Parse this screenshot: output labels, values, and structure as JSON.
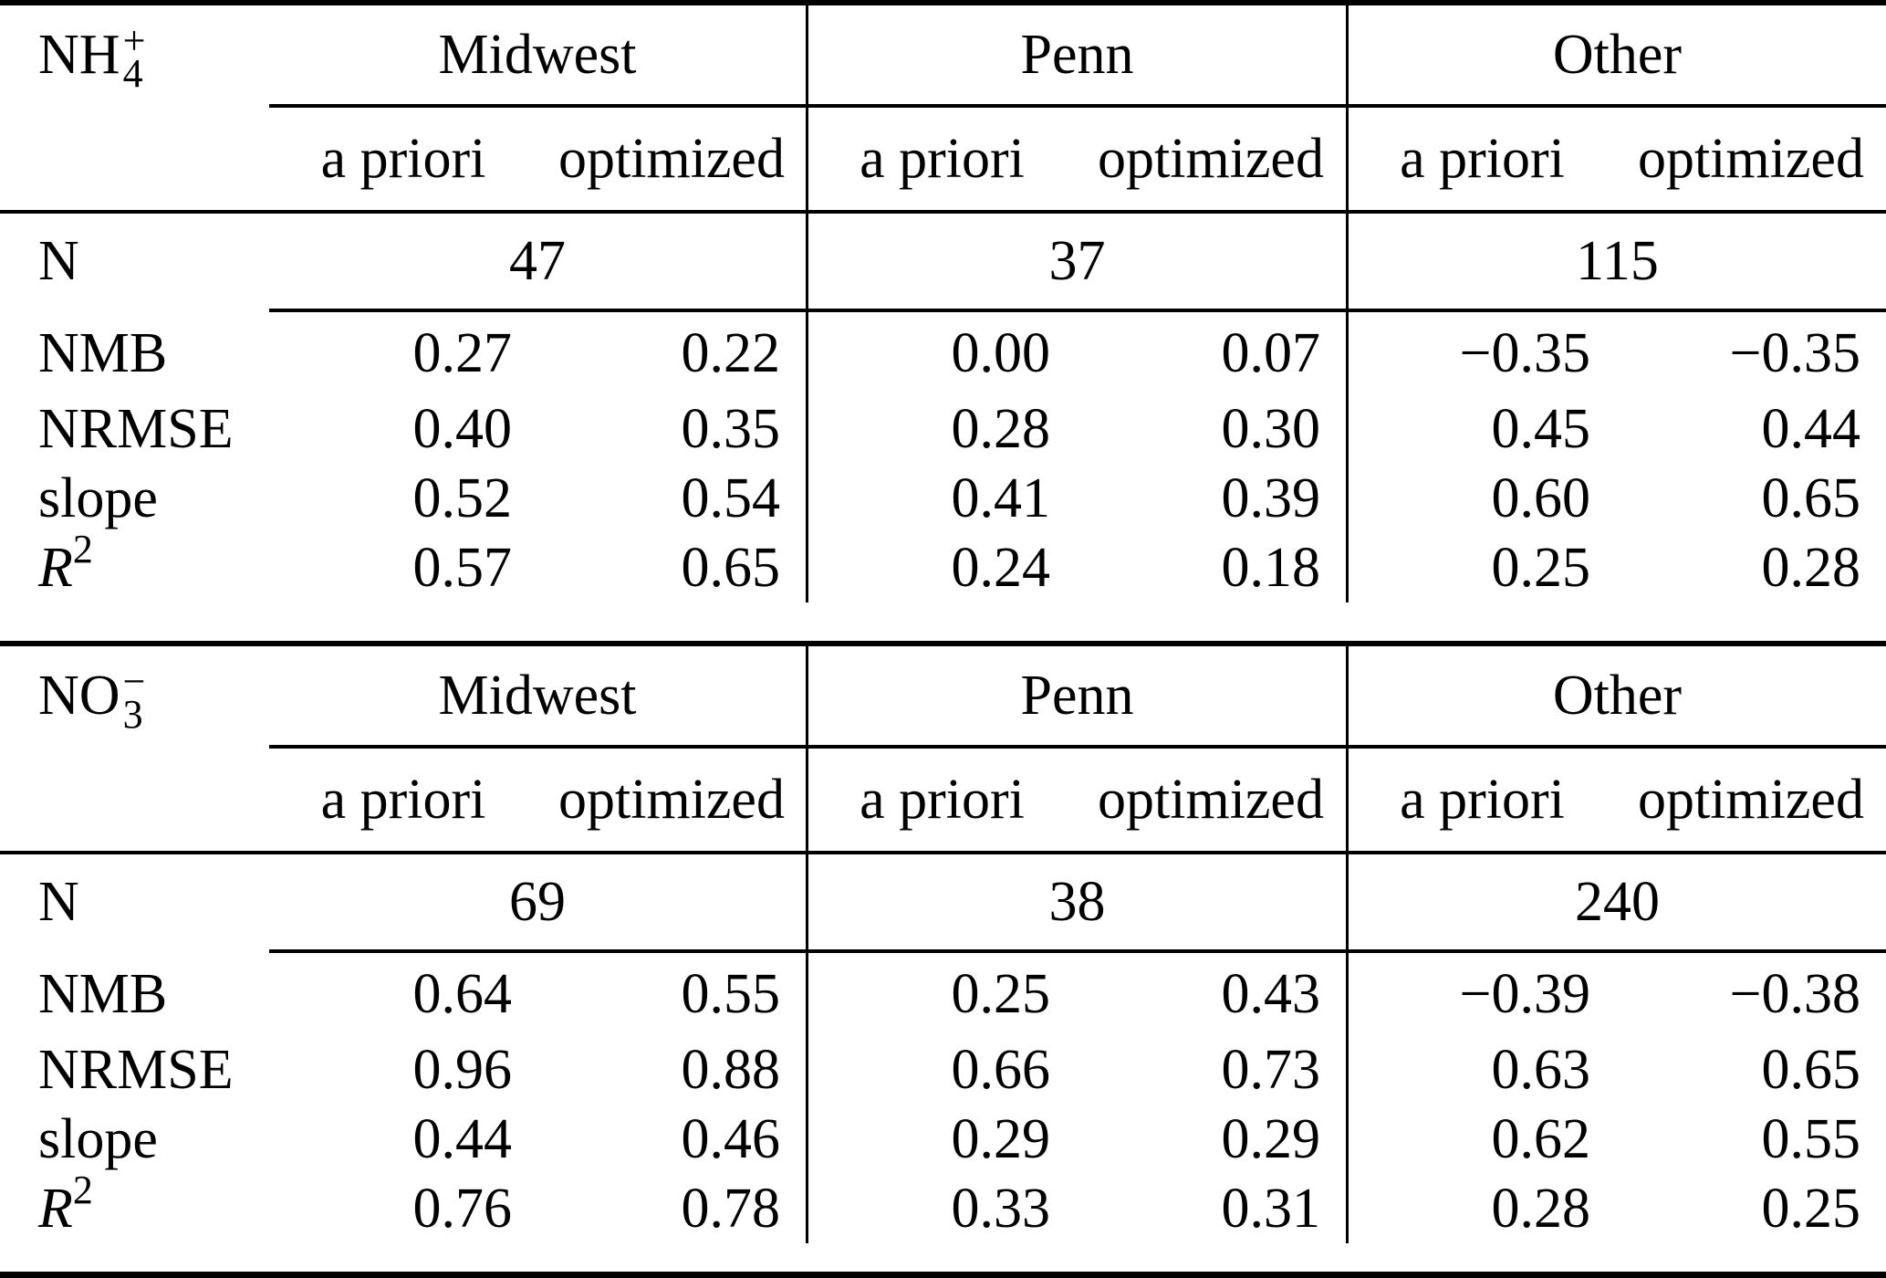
{
  "colors": {
    "text": "#000000",
    "background": "#ffffff",
    "rule": "#000000"
  },
  "tables": [
    {
      "species": {
        "base": "NH",
        "sub": "4",
        "sup": "+"
      },
      "n_label": "N",
      "regions": [
        {
          "name": "Midwest",
          "n": "47",
          "headers": [
            "a priori",
            "optimized"
          ]
        },
        {
          "name": "Penn",
          "n": "37",
          "headers": [
            "a priori",
            "optimized"
          ]
        },
        {
          "name": "Other",
          "n": "115",
          "headers": [
            "a priori",
            "optimized"
          ]
        }
      ],
      "rows": [
        {
          "label": "NMB",
          "values": [
            "0.27",
            "0.22",
            "0.00",
            "0.07",
            "−0.35",
            "−0.35"
          ]
        },
        {
          "label": "NRMSE",
          "values": [
            "0.40",
            "0.35",
            "0.28",
            "0.30",
            "0.45",
            "0.44"
          ]
        },
        {
          "label": "slope",
          "values": [
            "0.52",
            "0.54",
            "0.41",
            "0.39",
            "0.60",
            "0.65"
          ]
        },
        {
          "label": "R",
          "label_sup": "2",
          "values": [
            "0.57",
            "0.65",
            "0.24",
            "0.18",
            "0.25",
            "0.28"
          ]
        }
      ]
    },
    {
      "species": {
        "base": "NO",
        "sub": "3",
        "sup": "−"
      },
      "n_label": "N",
      "regions": [
        {
          "name": "Midwest",
          "n": "69",
          "headers": [
            "a priori",
            "optimized"
          ]
        },
        {
          "name": "Penn",
          "n": "38",
          "headers": [
            "a priori",
            "optimized"
          ]
        },
        {
          "name": "Other",
          "n": "240",
          "headers": [
            "a priori",
            "optimized"
          ]
        }
      ],
      "rows": [
        {
          "label": "NMB",
          "values": [
            "0.64",
            "0.55",
            "0.25",
            "0.43",
            "−0.39",
            "−0.38"
          ]
        },
        {
          "label": "NRMSE",
          "values": [
            "0.96",
            "0.88",
            "0.66",
            "0.73",
            "0.63",
            "0.65"
          ]
        },
        {
          "label": "slope",
          "values": [
            "0.44",
            "0.46",
            "0.29",
            "0.29",
            "0.62",
            "0.55"
          ]
        },
        {
          "label": "R",
          "label_sup": "2",
          "values": [
            "0.76",
            "0.78",
            "0.33",
            "0.31",
            "0.28",
            "0.25"
          ]
        }
      ]
    }
  ]
}
